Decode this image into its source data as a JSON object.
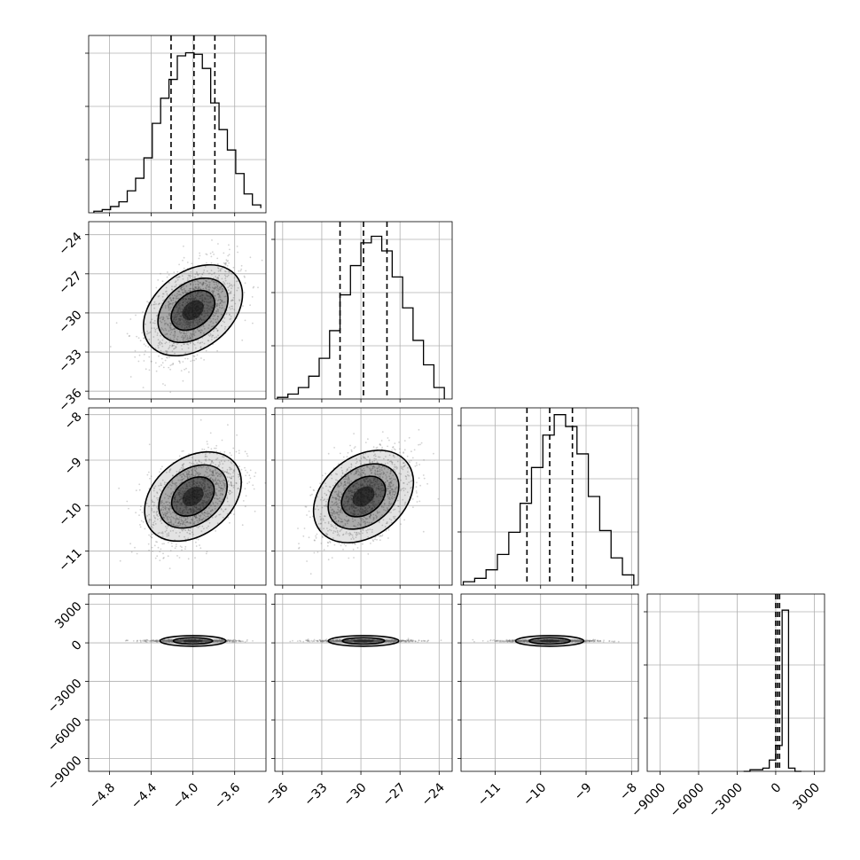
{
  "chart_data": {
    "type": "corner",
    "parameters": [
      {
        "range": [
          -5.0,
          -3.3
        ],
        "ticks": [
          -4.8,
          -4.4,
          -4.0,
          -3.6
        ],
        "tick_labels": [
          "−4.8",
          "−4.4",
          "−4.0",
          "−3.6"
        ],
        "center": -4.0,
        "spread": 0.21,
        "quantiles": [
          -4.21,
          -3.99,
          -3.79
        ]
      },
      {
        "range": [
          -36.6,
          -23.0
        ],
        "ticks": [
          -36,
          -33,
          -30,
          -27,
          -24
        ],
        "tick_labels": [
          "−36",
          "−33",
          "−30",
          "−27",
          "−24"
        ],
        "center": -29.8,
        "spread": 1.8,
        "quantiles": [
          -31.6,
          -29.8,
          -28.0
        ]
      },
      {
        "range": [
          -11.75,
          -7.85
        ],
        "ticks": [
          -11,
          -10,
          -9,
          -8
        ],
        "tick_labels": [
          "−11",
          "−10",
          "−9",
          "−8"
        ],
        "center": -9.8,
        "spread": 0.5,
        "quantiles": [
          -10.3,
          -9.8,
          -9.3
        ]
      },
      {
        "range": [
          -10000,
          3800
        ],
        "ticks": [
          -9000,
          -6000,
          -3000,
          0,
          3000
        ],
        "tick_labels": [
          "−9000",
          "−6000",
          "−3000",
          "0",
          "3000"
        ],
        "center": 150,
        "spread": 120,
        "quantiles": [
          0,
          150,
          300
        ]
      }
    ],
    "histograms": [
      {
        "bins": [
          -4.95,
          -4.87,
          -4.79,
          -4.71,
          -4.63,
          -4.55,
          -4.47,
          -4.39,
          -4.31,
          -4.23,
          -4.15,
          -4.07,
          -3.99,
          -3.91,
          -3.83,
          -3.75,
          -3.67,
          -3.59,
          -3.51,
          -3.43,
          -3.35
        ],
        "counts": [
          1,
          2,
          4,
          7,
          14,
          22,
          35,
          57,
          73,
          85,
          100,
          102,
          101,
          92,
          70,
          53,
          40,
          25,
          12,
          5,
          3
        ],
        "ymax": 113
      },
      {
        "bins": [
          -36.4,
          -35.6,
          -34.8,
          -34.0,
          -33.2,
          -32.4,
          -31.6,
          -30.8,
          -30.0,
          -29.2,
          -28.4,
          -27.6,
          -26.8,
          -26.0,
          -25.2,
          -24.4,
          -23.6
        ],
        "counts": [
          1,
          3,
          7,
          14,
          25,
          42,
          64,
          82,
          96,
          100,
          91,
          75,
          56,
          36,
          21,
          7
        ],
        "ymax": 109
      },
      {
        "bins": [
          -11.7,
          -11.45,
          -11.2,
          -10.95,
          -10.7,
          -10.45,
          -10.2,
          -9.95,
          -9.7,
          -9.45,
          -9.2,
          -8.95,
          -8.7,
          -8.45,
          -8.2,
          -7.95
        ],
        "counts": [
          2,
          4,
          9,
          18,
          31,
          48,
          69,
          88,
          100,
          93,
          77,
          52,
          32,
          16,
          6
        ],
        "ymax": 104
      },
      {
        "bins": [
          -2500,
          -2000,
          -1500,
          -1000,
          -500,
          0,
          500,
          1000,
          1500,
          2000
        ],
        "counts": [
          0,
          1,
          1,
          2,
          7,
          16,
          100,
          2,
          0
        ],
        "ymax": 110
      }
    ],
    "quantiles": [
      0.16,
      0.5,
      0.84
    ],
    "grid": true,
    "sample_color": "#7f7f7f",
    "density_color": "#000000"
  }
}
